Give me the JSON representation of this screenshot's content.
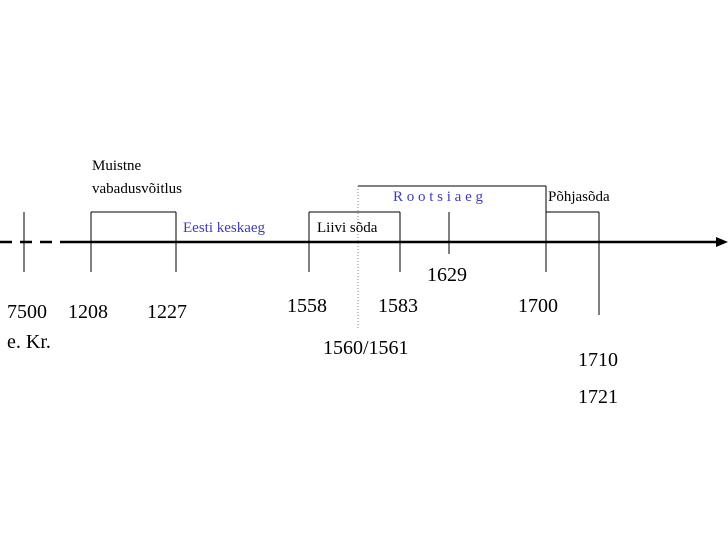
{
  "timeline": {
    "years": {
      "y7500": "7500",
      "bc_suffix": "e. Kr.",
      "y1208": "1208",
      "y1227": "1227",
      "y1558": "1558",
      "y1583": "1583",
      "y1560_1561": "1560/1561",
      "y1629": "1629",
      "y1700": "1700",
      "y1710": "1710",
      "y1721": "1721"
    },
    "periods": {
      "muistne_line1": "Muistne",
      "muistne_line2": "vabadusvõitlus",
      "eesti_keskaeg": "Eesti keskaeg",
      "liivi_soda": "Liivi sõda",
      "rootsi_aeg": "R o o t s i    a e g",
      "pohjasoda": "Põhjasõda"
    },
    "colors": {
      "line": "#000000",
      "highlight": "#3c3cbc"
    }
  }
}
